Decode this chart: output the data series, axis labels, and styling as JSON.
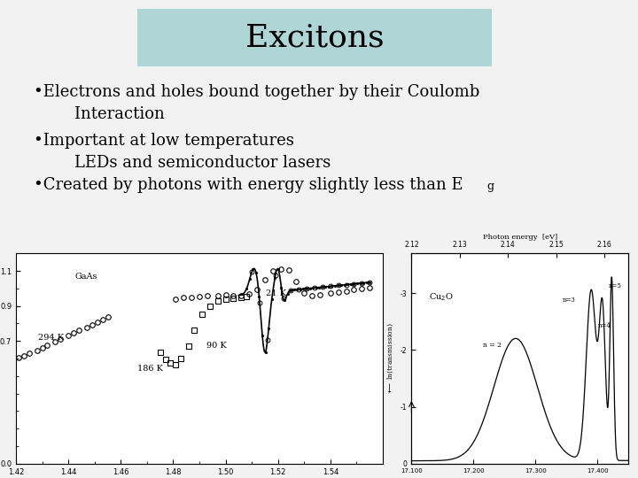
{
  "title": "Excitons",
  "title_bg_color": "#add8e6",
  "background_color": "#f0f0f0",
  "bullets": [
    "Electrons and holes bound together by their Coulomb\n        Interaction",
    "Important at low temperatures\n        LEDs and semiconductor lasers",
    "Created by photons with energy slightly less than E"
  ],
  "bullet_subscript": "g",
  "title_fontsize": 26,
  "bullet_fontsize": 13
}
